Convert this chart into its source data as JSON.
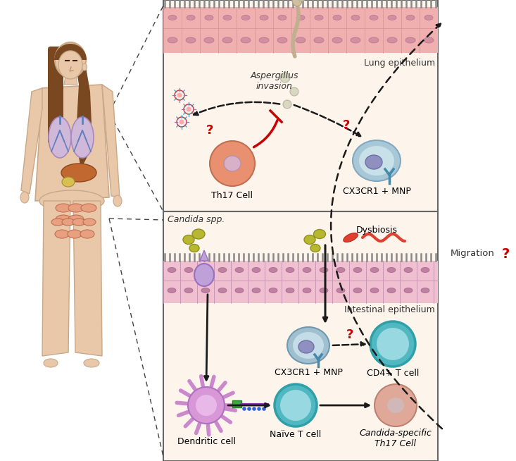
{
  "fig_width": 7.33,
  "fig_height": 6.54,
  "bg_color": "#ffffff",
  "panel_bg_upper": "#fdf5ec",
  "panel_bg_lower": "#fdf5ec",
  "epithelium_color_upper": "#f0b0b0",
  "epithelium_color_lower": "#f0c0d0",
  "cilia_color": "#888888",
  "border_color": "#666666",
  "th17_cell_color": "#e89070",
  "th17_nucleus_color": "#d0a8c0",
  "cx3cr1_upper_color": "#90b8c8",
  "cx3cr1_nucleus_color": "#9898c8",
  "candida_color": "#b8b830",
  "bacteria_color": "#e04030",
  "dc_cell_color": "#cc88cc",
  "dc_nucleus_color": "#e0b8e0",
  "naive_t_color": "#50b8c0",
  "cd4_color": "#50b8c0",
  "candida_th17_color": "#e8a090",
  "question_color": "#cc0000",
  "arrow_color": "#1a1a1a",
  "inhibit_color": "#cc0000",
  "aspergillus_color": "#c0b090",
  "spore_color": "#d0d0b0",
  "skin_color": "#e8c8a8",
  "skin_edge": "#c8a888",
  "hair_color": "#7a4820",
  "lung_organ_color": "#d8b0d0",
  "liver_color": "#c06830",
  "intestine_color": "#e8a080",
  "migration_text": "Migration",
  "lung_epithelium_text": "Lung epithelium",
  "intestinal_epithelium_text": "Intestinal epithelium",
  "aspergillus_text": "Aspergillus\ninvasion",
  "th17_text": "Th17 Cell",
  "cx3cr1_upper_text": "CX3CR1 + MNP",
  "candida_text": "Candida spp.",
  "dysbiosis_text": "Dysbiosis",
  "cx3cr1_lower_text": "CX3CR1 + MNP",
  "cd4_text": "CD4+ T cell",
  "dc_text": "Dendritic cell",
  "naive_t_text": "Naïve T cell",
  "candida_specific_text": "Candida-specific\nTh17 Cell"
}
